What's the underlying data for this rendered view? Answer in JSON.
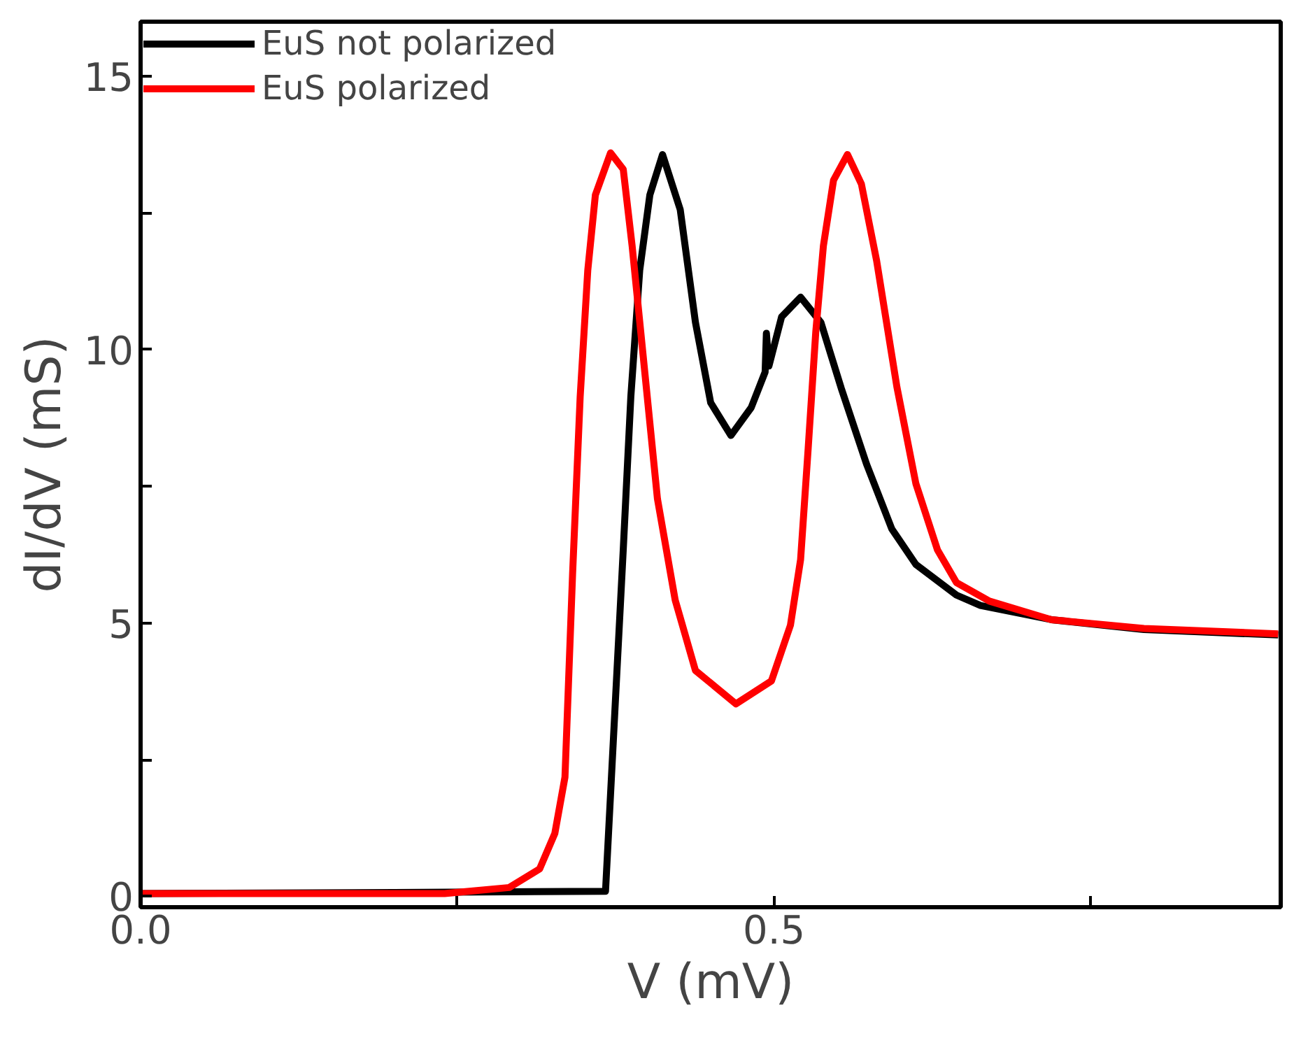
{
  "chart_data": {
    "type": "line",
    "xlabel": "V (mV)",
    "ylabel": "dI/dV (mS)",
    "xlim": [
      0,
      0.9
    ],
    "ylim": [
      -0.2,
      16
    ],
    "xticks": [
      {
        "value": 0,
        "label": "0.0"
      },
      {
        "value": 0.25,
        "label": null
      },
      {
        "value": 0.5,
        "label": "0.5"
      },
      {
        "value": 0.75,
        "label": null
      }
    ],
    "yticks": [
      0,
      {
        "value": 2.5,
        "label": null
      },
      5,
      {
        "value": 7.5,
        "label": null
      },
      10,
      {
        "value": 12.5,
        "label": null
      },
      15
    ],
    "grid": false,
    "legend": "top left",
    "marker": "none",
    "line_style": "solid",
    "series": [
      {
        "name": "EuS not polarized",
        "color": "#000000",
        "x": [
          0,
          0.2,
          0.367,
          0.381,
          0.387,
          0.394,
          0.402,
          0.412,
          0.426,
          0.438,
          0.45,
          0.466,
          0.482,
          0.493,
          0.494,
          0.496,
          0.506,
          0.521,
          0.537,
          0.553,
          0.573,
          0.593,
          0.612,
          0.644,
          0.663,
          0.719,
          0.792,
          0.898
        ],
        "values": [
          0.05,
          0.07,
          0.09,
          6.34,
          9.14,
          11.45,
          12.83,
          13.57,
          12.56,
          10.5,
          9.03,
          8.43,
          8.94,
          9.59,
          10.3,
          9.7,
          10.6,
          10.96,
          10.5,
          9.3,
          7.91,
          6.72,
          6.07,
          5.51,
          5.32,
          5.06,
          4.88,
          4.78
        ]
      },
      {
        "name": "EuS polarized",
        "color": "#ff0000",
        "x": [
          0,
          0.24,
          0.291,
          0.315,
          0.327,
          0.335,
          0.341,
          0.347,
          0.353,
          0.359,
          0.371,
          0.381,
          0.388,
          0.398,
          0.408,
          0.422,
          0.438,
          0.47,
          0.498,
          0.513,
          0.521,
          0.527,
          0.533,
          0.539,
          0.547,
          0.558,
          0.569,
          0.581,
          0.597,
          0.612,
          0.629,
          0.644,
          0.67,
          0.719,
          0.792,
          0.898
        ],
        "values": [
          0.05,
          0.05,
          0.16,
          0.5,
          1.15,
          2.18,
          5.89,
          9.14,
          11.45,
          12.83,
          13.6,
          13.3,
          11.9,
          9.59,
          7.27,
          5.42,
          4.13,
          3.52,
          3.94,
          4.96,
          6.16,
          8.2,
          10.33,
          11.9,
          13.1,
          13.57,
          13.03,
          11.63,
          9.32,
          7.55,
          6.34,
          5.74,
          5.4,
          5.06,
          4.9,
          4.8
        ]
      }
    ]
  }
}
